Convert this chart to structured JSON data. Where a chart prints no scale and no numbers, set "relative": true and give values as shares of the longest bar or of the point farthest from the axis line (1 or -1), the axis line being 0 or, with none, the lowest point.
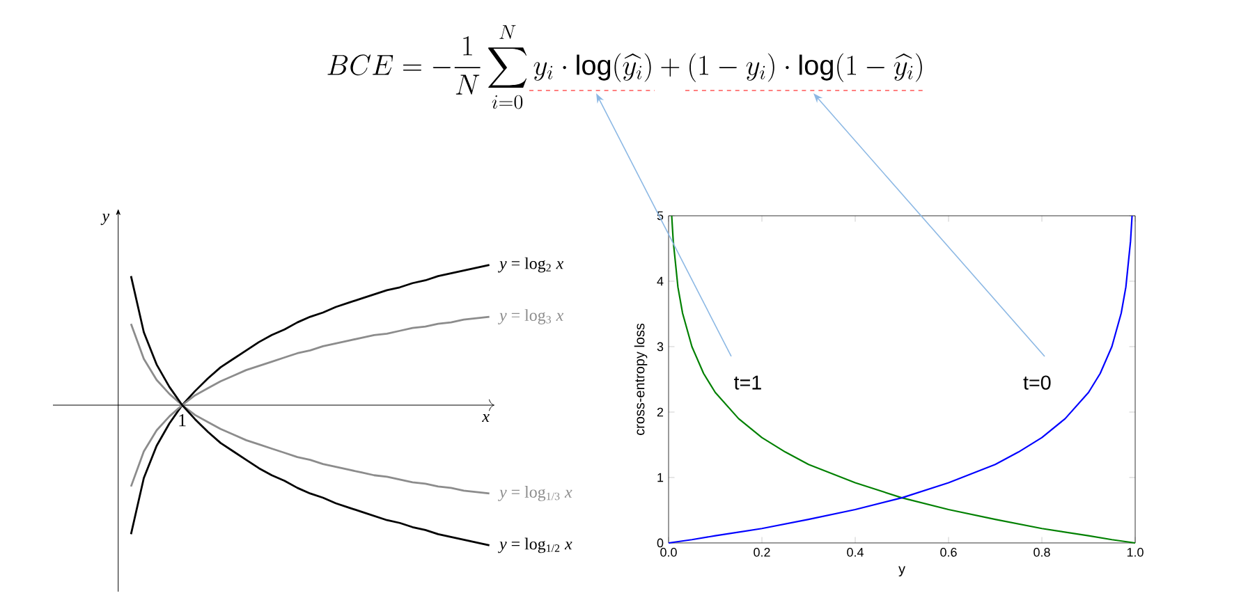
{
  "chart_data": [
    {
      "type": "line",
      "relative": true,
      "xlabel": "x",
      "ylabel": "y",
      "annotations": [
        "1"
      ],
      "categories": [
        null,
        null,
        null,
        null,
        null,
        null,
        null,
        null,
        null,
        null,
        null,
        null,
        null,
        null,
        null,
        null,
        null,
        null,
        null,
        null,
        null,
        null,
        null,
        null,
        null,
        null,
        null,
        null,
        null
      ],
      "series": [
        {
          "name": "*y* = log$_{2}$ *x*",
          "color": "#000000",
          "values": [
            -0.92,
            -0.52,
            -0.29,
            -0.13,
            0,
            0.1,
            0.19,
            0.27,
            0.33,
            0.39,
            0.45,
            0.5,
            0.54,
            0.59,
            0.63,
            0.66,
            0.7,
            0.73,
            0.76,
            0.79,
            0.82,
            0.84,
            0.87,
            0.89,
            0.92,
            0.94,
            0.96,
            0.98,
            1
          ]
        },
        {
          "name": "*y* = log$_{3}$ *x*",
          "color": "#8c8c8c",
          "values": [
            -0.58,
            -0.33,
            -0.18,
            -0.08,
            0,
            0.07,
            0.12,
            0.17,
            0.21,
            0.25,
            0.28,
            0.31,
            0.34,
            0.37,
            0.39,
            0.42,
            0.44,
            0.46,
            0.48,
            0.5,
            0.51,
            0.53,
            0.55,
            0.56,
            0.58,
            0.59,
            0.61,
            0.62,
            0.63
          ]
        },
        {
          "name": "*y* = log$_{1/3}$ *x*",
          "color": "#8c8c8c",
          "values": [
            0.58,
            0.33,
            0.18,
            0.08,
            0,
            -0.07,
            -0.12,
            -0.17,
            -0.21,
            -0.25,
            -0.28,
            -0.31,
            -0.34,
            -0.37,
            -0.39,
            -0.42,
            -0.44,
            -0.46,
            -0.48,
            -0.5,
            -0.51,
            -0.53,
            -0.55,
            -0.56,
            -0.58,
            -0.59,
            -0.61,
            -0.62,
            -0.63
          ]
        },
        {
          "name": "*y* = log$_{1/2}$ *x*",
          "color": "#000000",
          "values": [
            0.92,
            0.52,
            0.29,
            0.13,
            0,
            -0.1,
            -0.19,
            -0.27,
            -0.33,
            -0.39,
            -0.45,
            -0.5,
            -0.54,
            -0.59,
            -0.63,
            -0.66,
            -0.7,
            -0.73,
            -0.76,
            -0.79,
            -0.82,
            -0.84,
            -0.87,
            -0.89,
            -0.92,
            -0.94,
            -0.96,
            -0.98,
            -1
          ]
        }
      ]
    },
    {
      "type": "line",
      "title": "BCE = -\\frac{1}{N}\\sum_{i=0}^{N} y_i \\cdot \\log(\\widehat{y_i}) + (1-y_i) \\cdot \\log(1-\\widehat{y_i})",
      "xlabel": "y",
      "ylabel": "cross-entropy loss",
      "xlim": [
        0,
        1
      ],
      "ylim": [
        0,
        5
      ],
      "xticks": [
        {
          "value": 0,
          "label": "0.0"
        },
        {
          "value": 0.2,
          "label": "0.2"
        },
        {
          "value": 0.4,
          "label": "0.4"
        },
        {
          "value": 0.6,
          "label": "0.6"
        },
        {
          "value": 0.8,
          "label": "0.8"
        },
        {
          "value": 1,
          "label": "1.0"
        }
      ],
      "yticks": [
        0,
        1,
        2,
        3,
        4,
        5
      ],
      "series": [
        {
          "name": "t=1",
          "color": "#008000",
          "x": [
            0.0067,
            0.01,
            0.02,
            0.03,
            0.05,
            0.075,
            0.1,
            0.15,
            0.2,
            0.25,
            0.3,
            0.4,
            0.5,
            0.6,
            0.7,
            0.8,
            0.9,
            0.95,
            1.0
          ],
          "values": [
            5.0,
            4.61,
            3.91,
            3.51,
            3.0,
            2.59,
            2.3,
            1.9,
            1.61,
            1.39,
            1.2,
            0.92,
            0.69,
            0.51,
            0.36,
            0.22,
            0.11,
            0.05,
            0
          ]
        },
        {
          "name": "t=0",
          "color": "#0000ff",
          "x": [
            0,
            0.05,
            0.1,
            0.2,
            0.3,
            0.4,
            0.5,
            0.6,
            0.7,
            0.75,
            0.8,
            0.85,
            0.9,
            0.925,
            0.95,
            0.97,
            0.98,
            0.99,
            0.9933
          ],
          "values": [
            0,
            0.05,
            0.11,
            0.22,
            0.36,
            0.51,
            0.69,
            0.92,
            1.2,
            1.39,
            1.61,
            1.9,
            2.3,
            2.59,
            3.0,
            3.51,
            3.91,
            4.61,
            5.0
          ]
        }
      ]
    }
  ]
}
